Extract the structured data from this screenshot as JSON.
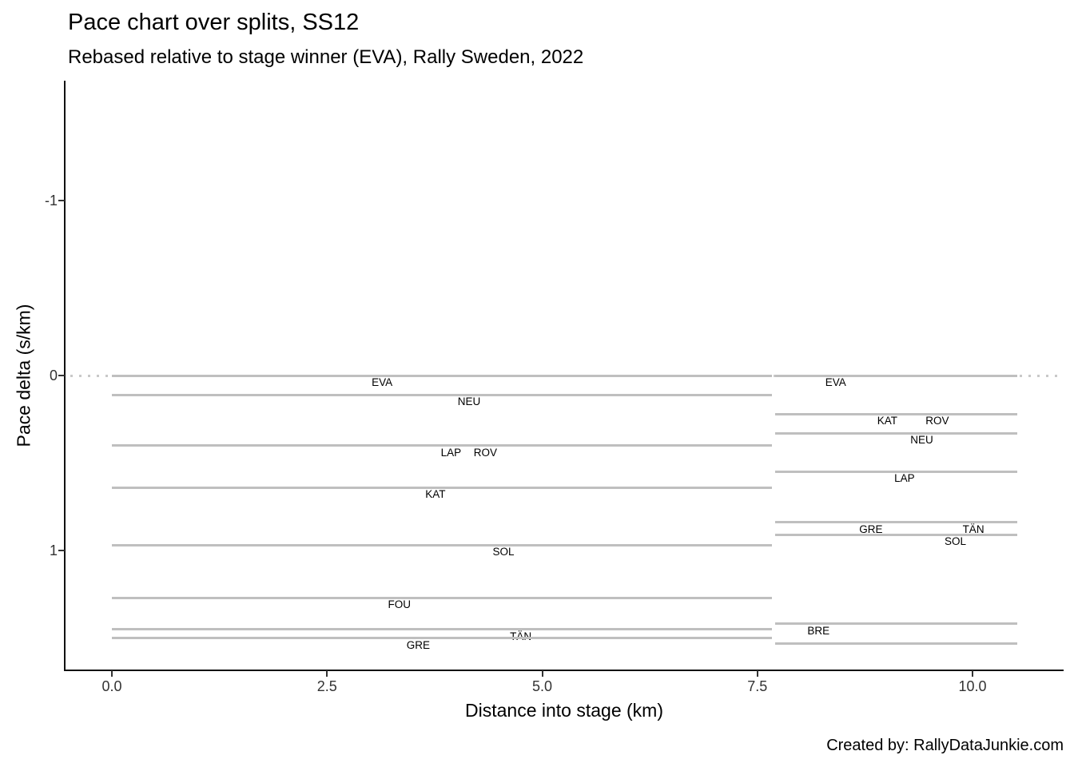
{
  "footer": {
    "credit": "Created by: RallyDataJunkie.com"
  },
  "chart_data": {
    "type": "segment-step",
    "title": "Pace chart over splits, SS12",
    "subtitle": "Rebased relative to stage winner (EVA), Rally Sweden, 2022",
    "xlabel": "Distance into stage (km)",
    "ylabel": "Pace delta (s/km)",
    "xlim": [
      -0.54,
      11.06
    ],
    "ylim": [
      -1.68,
      1.69
    ],
    "y_axis_inverted": true,
    "grid": false,
    "legend": "none",
    "zero_line": {
      "value": 0,
      "style": "dotted"
    },
    "x_ticks": [
      {
        "value": 0,
        "label": "0.0"
      },
      {
        "value": 2.5,
        "label": "2.5"
      },
      {
        "value": 5,
        "label": "5.0"
      },
      {
        "value": 7.5,
        "label": "7.5"
      },
      {
        "value": 10,
        "label": "10.0"
      }
    ],
    "y_ticks": [
      {
        "value": -1,
        "label": "-1"
      },
      {
        "value": 0,
        "label": "0"
      },
      {
        "value": 1,
        "label": "1"
      }
    ],
    "splits": [
      {
        "split": 1,
        "x_start": 0.0,
        "x_end": 7.67,
        "segments": [
          {
            "driver": "EVA",
            "value": 0.0,
            "label_x": 3.14
          },
          {
            "driver": "NEU",
            "value": 0.11,
            "label_x": 4.15
          },
          {
            "driver": "LAP",
            "value": 0.4,
            "label_x": 3.94
          },
          {
            "driver": "ROV",
            "value": 0.4,
            "label_x": 4.34
          },
          {
            "driver": "KAT",
            "value": 0.64,
            "label_x": 3.76
          },
          {
            "driver": "SOL",
            "value": 0.97,
            "label_x": 4.55
          },
          {
            "driver": "FOU",
            "value": 1.27,
            "label_x": 3.34
          },
          {
            "driver": "TÄN",
            "value": 1.45,
            "label_x": 4.75
          },
          {
            "driver": "GRE",
            "value": 1.5,
            "label_x": 3.56
          }
        ]
      },
      {
        "split": 2,
        "x_start": 7.71,
        "x_end": 10.52,
        "segments": [
          {
            "driver": "EVA",
            "value": 0.0,
            "label_x": 8.41
          },
          {
            "driver": "KAT",
            "value": 0.22,
            "label_x": 9.01
          },
          {
            "driver": "ROV",
            "value": 0.22,
            "label_x": 9.59
          },
          {
            "driver": "NEU",
            "value": 0.33,
            "label_x": 9.41
          },
          {
            "driver": "LAP",
            "value": 0.55,
            "label_x": 9.21
          },
          {
            "driver": "GRE",
            "value": 0.84,
            "label_x": 8.82
          },
          {
            "driver": "TÄN",
            "value": 0.84,
            "label_x": 10.01
          },
          {
            "driver": "SOL",
            "value": 0.91,
            "label_x": 9.8
          },
          {
            "driver": "BRE",
            "value": 1.42,
            "label_x": 8.21
          },
          {
            "driver": "",
            "value": 1.53,
            "label_x": null
          }
        ]
      }
    ]
  }
}
